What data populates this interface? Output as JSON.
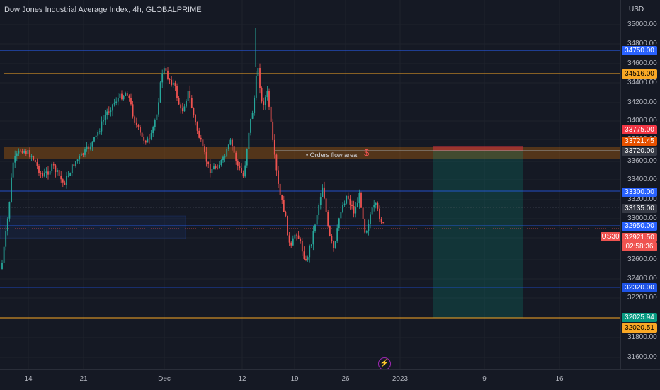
{
  "header": {
    "title": "Dow Jones Industrial Average Index, 4h, GLOBALPRIME",
    "currency": "USD"
  },
  "price_axis": {
    "ticks": [
      "35000.00",
      "34800.00",
      "34600.00",
      "34400.00",
      "34200.00",
      "34000.00",
      "33800.00",
      "33600.00",
      "33400.00",
      "33200.00",
      "33000.00",
      "32800.00",
      "32600.00",
      "32400.00",
      "32200.00",
      "31800.00",
      "31600.00"
    ]
  },
  "time_axis": {
    "ticks": [
      "14",
      "21",
      "Dec",
      "12",
      "19",
      "26",
      "2023",
      "9",
      "16"
    ]
  },
  "price_tags": [
    {
      "text": "34750.00",
      "color": "#2962ff"
    },
    {
      "text": "34516.00",
      "color": "#f9a825"
    },
    {
      "text": "33775.00",
      "color": "#f23645"
    },
    {
      "text": "33721.45",
      "color": "#e65100"
    },
    {
      "text": "33720.00",
      "color": "#363a45"
    },
    {
      "text": "33300.00",
      "color": "#2962ff"
    },
    {
      "text": "33135.00",
      "color": "#363a45"
    },
    {
      "text": "32950.00",
      "color": "#2962ff"
    },
    {
      "text": "32921.50",
      "color": "#ef5350"
    },
    {
      "text": "02:58:36",
      "color": "#ef5350"
    },
    {
      "text": "32320.00",
      "color": "#1e53e5"
    },
    {
      "text": "32025.94",
      "color": "#089981"
    },
    {
      "text": "32020.51",
      "color": "#f9a825"
    }
  ],
  "symbol_tag": "US30",
  "annotations": {
    "orders_flow": "• Orders flow area",
    "dollar_icon": "$"
  },
  "icons": {
    "bolt": "lightning-icon"
  },
  "colors": {
    "up": "#26a69a",
    "down": "#ef5350",
    "background": "#151924"
  }
}
